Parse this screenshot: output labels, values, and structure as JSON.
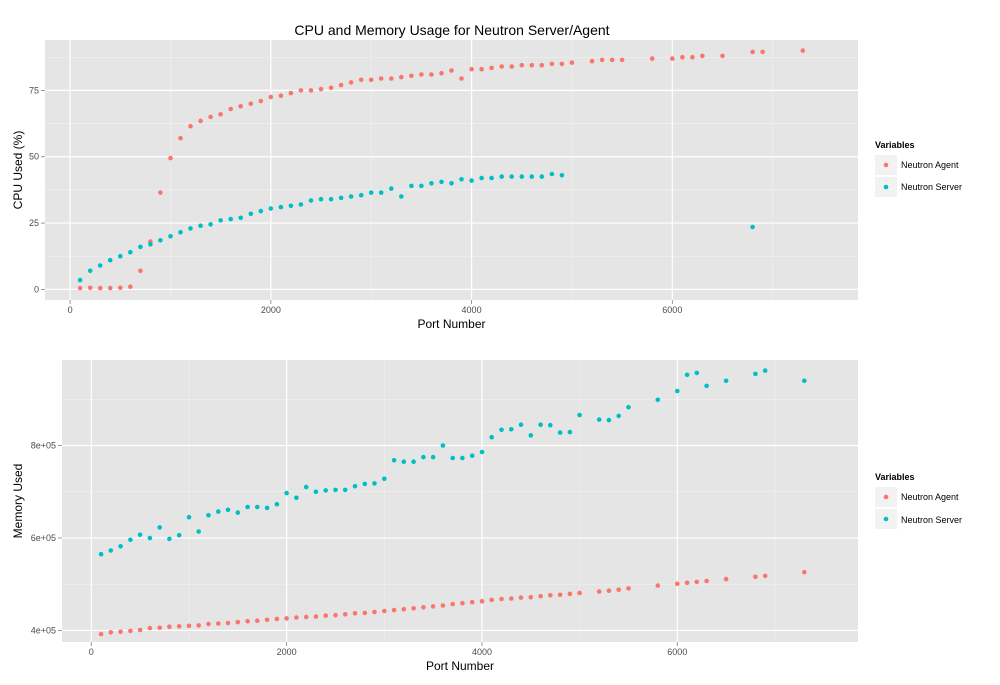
{
  "title": "CPU and Memory Usage for Neutron Server/Agent",
  "colors": {
    "agent": "#F8766D",
    "server": "#00BFC4",
    "panel": "#E5E5E5",
    "grid_major": "#FFFFFF",
    "grid_minor": "#F2F2F2"
  },
  "chart_data": [
    {
      "type": "scatter",
      "xlabel": "Port Number",
      "ylabel": "CPU Used (%)",
      "xlim": [
        -250,
        7850
      ],
      "ylim": [
        -4,
        94
      ],
      "xticks": [
        0,
        2000,
        4000,
        6000
      ],
      "xtick_labels": [
        "0",
        "2000",
        "4000",
        "6000"
      ],
      "yticks": [
        0,
        25,
        50,
        75
      ],
      "ytick_labels": [
        "0",
        "25",
        "50",
        "75"
      ],
      "grid": true,
      "legend": {
        "title": "Variables",
        "position": "right",
        "entries": [
          "Neutron Agent",
          "Neutron Server"
        ]
      },
      "series": [
        {
          "name": "Neutron Agent",
          "points": [
            [
              100,
              0.5
            ],
            [
              200,
              0.6
            ],
            [
              300,
              0.5
            ],
            [
              400,
              0.5
            ],
            [
              500,
              0.6
            ],
            [
              600,
              1
            ],
            [
              700,
              7
            ],
            [
              800,
              18
            ],
            [
              900,
              36.5
            ],
            [
              1000,
              49.5
            ],
            [
              1100,
              57
            ],
            [
              1200,
              61.5
            ],
            [
              1300,
              63.5
            ],
            [
              1400,
              65
            ],
            [
              1500,
              66
            ],
            [
              1600,
              68
            ],
            [
              1700,
              69
            ],
            [
              1800,
              70
            ],
            [
              1900,
              71
            ],
            [
              2000,
              72.5
            ],
            [
              2100,
              73
            ],
            [
              2200,
              74
            ],
            [
              2300,
              75
            ],
            [
              2400,
              75
            ],
            [
              2500,
              75.5
            ],
            [
              2600,
              76
            ],
            [
              2700,
              77
            ],
            [
              2800,
              78
            ],
            [
              2900,
              79
            ],
            [
              3000,
              79
            ],
            [
              3100,
              79.5
            ],
            [
              3200,
              79.5
            ],
            [
              3300,
              80
            ],
            [
              3400,
              80.5
            ],
            [
              3500,
              81
            ],
            [
              3600,
              81
            ],
            [
              3700,
              81.5
            ],
            [
              3800,
              82.5
            ],
            [
              3900,
              79.5
            ],
            [
              4000,
              83
            ],
            [
              4100,
              83
            ],
            [
              4200,
              83.5
            ],
            [
              4300,
              84
            ],
            [
              4400,
              84
            ],
            [
              4500,
              84.5
            ],
            [
              4600,
              84.5
            ],
            [
              4700,
              84.5
            ],
            [
              4800,
              85
            ],
            [
              4900,
              85
            ],
            [
              5000,
              85.5
            ],
            [
              5200,
              86
            ],
            [
              5300,
              86.5
            ],
            [
              5400,
              86.5
            ],
            [
              5500,
              86.5
            ],
            [
              5800,
              87
            ],
            [
              6000,
              87
            ],
            [
              6100,
              87.5
            ],
            [
              6200,
              87.5
            ],
            [
              6300,
              88
            ],
            [
              6500,
              88
            ],
            [
              6800,
              89.5
            ],
            [
              6900,
              89.5
            ],
            [
              7300,
              90
            ]
          ]
        },
        {
          "name": "Neutron Server",
          "points": [
            [
              100,
              3.5
            ],
            [
              200,
              7
            ],
            [
              300,
              9
            ],
            [
              400,
              11
            ],
            [
              500,
              12.5
            ],
            [
              600,
              14
            ],
            [
              700,
              16
            ],
            [
              800,
              17
            ],
            [
              900,
              18.5
            ],
            [
              1000,
              20
            ],
            [
              1100,
              21.5
            ],
            [
              1200,
              23
            ],
            [
              1300,
              24
            ],
            [
              1400,
              24.5
            ],
            [
              1500,
              26
            ],
            [
              1600,
              26.5
            ],
            [
              1700,
              27
            ],
            [
              1800,
              28.5
            ],
            [
              1900,
              29.5
            ],
            [
              2000,
              30.5
            ],
            [
              2100,
              31
            ],
            [
              2200,
              31.5
            ],
            [
              2300,
              32
            ],
            [
              2400,
              33.5
            ],
            [
              2500,
              34
            ],
            [
              2600,
              34
            ],
            [
              2700,
              34.5
            ],
            [
              2800,
              35
            ],
            [
              2900,
              35.5
            ],
            [
              3000,
              36.5
            ],
            [
              3100,
              36.5
            ],
            [
              3200,
              38
            ],
            [
              3300,
              35
            ],
            [
              3400,
              39
            ],
            [
              3500,
              39
            ],
            [
              3600,
              40
            ],
            [
              3700,
              40.5
            ],
            [
              3800,
              40
            ],
            [
              3900,
              41.5
            ],
            [
              4000,
              41
            ],
            [
              4100,
              42
            ],
            [
              4200,
              42
            ],
            [
              4300,
              42.5
            ],
            [
              4400,
              42.5
            ],
            [
              4500,
              42.5
            ],
            [
              4600,
              42.5
            ],
            [
              4700,
              42.5
            ],
            [
              4800,
              43.5
            ],
            [
              4900,
              43
            ],
            [
              6800,
              23.5
            ]
          ]
        }
      ]
    },
    {
      "type": "scatter",
      "xlabel": "Port Number",
      "ylabel": "Memory Used",
      "xlim": [
        -300,
        7850
      ],
      "ylim": [
        375000,
        985000
      ],
      "xticks": [
        0,
        2000,
        4000,
        6000
      ],
      "xtick_labels": [
        "0",
        "2000",
        "4000",
        "6000"
      ],
      "yticks": [
        400000,
        600000,
        800000
      ],
      "ytick_labels": [
        "4e+05",
        "6e+05",
        "8e+05"
      ],
      "grid": true,
      "legend": {
        "title": "Variables",
        "position": "right",
        "entries": [
          "Neutron Agent",
          "Neutron Server"
        ]
      },
      "series": [
        {
          "name": "Neutron Agent",
          "points": [
            [
              100,
              392000
            ],
            [
              200,
              396000
            ],
            [
              300,
              397000
            ],
            [
              400,
              399000
            ],
            [
              500,
              401000
            ],
            [
              600,
              405000
            ],
            [
              700,
              406000
            ],
            [
              800,
              408000
            ],
            [
              900,
              409000
            ],
            [
              1000,
              410000
            ],
            [
              1100,
              411000
            ],
            [
              1200,
              414000
            ],
            [
              1300,
              415000
            ],
            [
              1400,
              416000
            ],
            [
              1500,
              418000
            ],
            [
              1600,
              420000
            ],
            [
              1700,
              421000
            ],
            [
              1800,
              423000
            ],
            [
              1900,
              425000
            ],
            [
              2000,
              426000
            ],
            [
              2100,
              428000
            ],
            [
              2200,
              429000
            ],
            [
              2300,
              430000
            ],
            [
              2400,
              432000
            ],
            [
              2500,
              433000
            ],
            [
              2600,
              435000
            ],
            [
              2700,
              437000
            ],
            [
              2800,
              438000
            ],
            [
              2900,
              440000
            ],
            [
              3000,
              442000
            ],
            [
              3100,
              444000
            ],
            [
              3200,
              446000
            ],
            [
              3300,
              448000
            ],
            [
              3400,
              450000
            ],
            [
              3500,
              452000
            ],
            [
              3600,
              454000
            ],
            [
              3700,
              457000
            ],
            [
              3800,
              459000
            ],
            [
              3900,
              461000
            ],
            [
              4000,
              463000
            ],
            [
              4100,
              466000
            ],
            [
              4200,
              468000
            ],
            [
              4300,
              469000
            ],
            [
              4400,
              471000
            ],
            [
              4500,
              472000
            ],
            [
              4600,
              474000
            ],
            [
              4700,
              476000
            ],
            [
              4800,
              477000
            ],
            [
              4900,
              479000
            ],
            [
              5000,
              481000
            ],
            [
              5200,
              484000
            ],
            [
              5300,
              486000
            ],
            [
              5400,
              488000
            ],
            [
              5500,
              491000
            ],
            [
              5800,
              497000
            ],
            [
              6000,
              501000
            ],
            [
              6100,
              503000
            ],
            [
              6200,
              505000
            ],
            [
              6300,
              507000
            ],
            [
              6500,
              511000
            ],
            [
              6800,
              516000
            ],
            [
              6900,
              518000
            ],
            [
              7300,
              526000
            ]
          ]
        },
        {
          "name": "Neutron Server",
          "points": [
            [
              100,
              565000
            ],
            [
              200,
              573000
            ],
            [
              300,
              582000
            ],
            [
              400,
              596000
            ],
            [
              500,
              607000
            ],
            [
              600,
              600000
            ],
            [
              700,
              623000
            ],
            [
              800,
              598000
            ],
            [
              900,
              606000
            ],
            [
              1000,
              645000
            ],
            [
              1100,
              614000
            ],
            [
              1200,
              649000
            ],
            [
              1300,
              657000
            ],
            [
              1400,
              661000
            ],
            [
              1500,
              655000
            ],
            [
              1600,
              667000
            ],
            [
              1700,
              667000
            ],
            [
              1800,
              665000
            ],
            [
              1900,
              673000
            ],
            [
              2000,
              697000
            ],
            [
              2100,
              687000
            ],
            [
              2200,
              710000
            ],
            [
              2300,
              700000
            ],
            [
              2400,
              703000
            ],
            [
              2500,
              704000
            ],
            [
              2600,
              704000
            ],
            [
              2700,
              712000
            ],
            [
              2800,
              717000
            ],
            [
              2900,
              718000
            ],
            [
              3000,
              728000
            ],
            [
              3100,
              768000
            ],
            [
              3200,
              765000
            ],
            [
              3300,
              765000
            ],
            [
              3400,
              775000
            ],
            [
              3500,
              775000
            ],
            [
              3600,
              800000
            ],
            [
              3700,
              773000
            ],
            [
              3800,
              773000
            ],
            [
              3900,
              778000
            ],
            [
              4000,
              786000
            ],
            [
              4100,
              818000
            ],
            [
              4200,
              834000
            ],
            [
              4300,
              835000
            ],
            [
              4400,
              845000
            ],
            [
              4500,
              822000
            ],
            [
              4600,
              845000
            ],
            [
              4700,
              844000
            ],
            [
              4800,
              828000
            ],
            [
              4900,
              829000
            ],
            [
              5000,
              866000
            ],
            [
              5200,
              856000
            ],
            [
              5300,
              855000
            ],
            [
              5400,
              864000
            ],
            [
              5500,
              883000
            ],
            [
              5800,
              899000
            ],
            [
              6000,
              918000
            ],
            [
              6100,
              953000
            ],
            [
              6200,
              957000
            ],
            [
              6300,
              929000
            ],
            [
              6500,
              940000
            ],
            [
              6800,
              955000
            ],
            [
              6900,
              962000
            ],
            [
              7300,
              940000
            ]
          ]
        }
      ]
    }
  ]
}
